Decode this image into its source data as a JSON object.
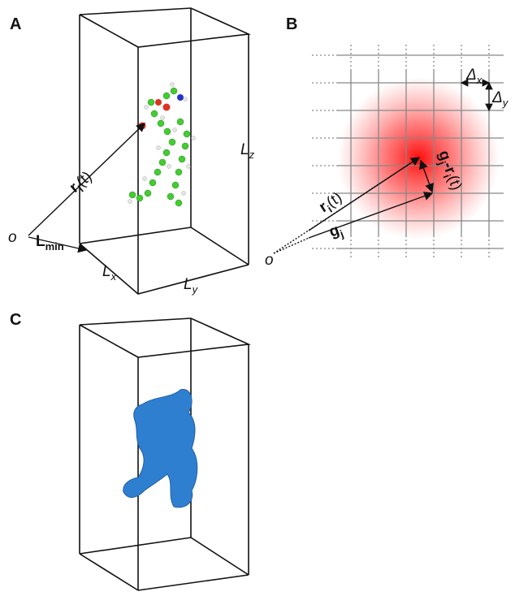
{
  "panels": [
    {
      "label": "A",
      "labels": [
        {
          "base": "r",
          "sub": "i",
          "tail": "(t)"
        },
        {
          "base": "o"
        },
        {
          "base": "L",
          "sub": "min"
        },
        {
          "base": "L",
          "sub": "x"
        },
        {
          "base": "L",
          "sub": "y"
        },
        {
          "base": "L",
          "sub": "z"
        }
      ]
    },
    {
      "label": "B",
      "labels": [
        {
          "base": "Δ",
          "sub": "x"
        },
        {
          "base": "Δ",
          "sub": "y"
        },
        {
          "base": "r",
          "sub": "i",
          "tail": "(t)"
        },
        {
          "base": "g",
          "sub": "j"
        },
        {
          "base": "g",
          "sub": "j",
          "tail": "-r",
          "sub2": "i",
          "tail2": "(t)"
        },
        {
          "base": "o"
        }
      ]
    },
    {
      "label": "C"
    }
  ]
}
